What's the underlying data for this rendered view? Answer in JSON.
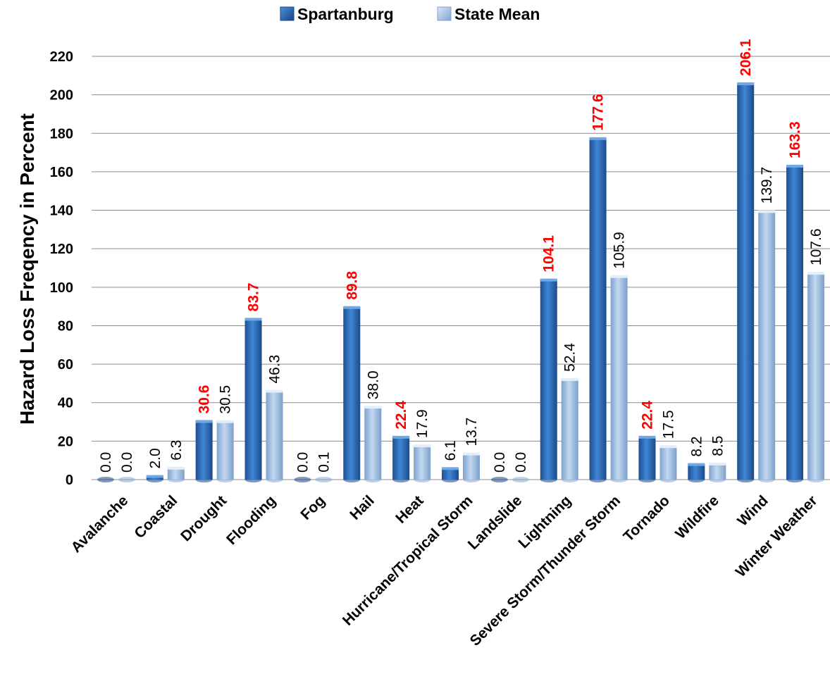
{
  "chart_data": {
    "type": "bar",
    "ylabel": "Hazard Loss Freqency in Percent",
    "ylim": [
      0,
      220
    ],
    "yticks": [
      0,
      20,
      40,
      60,
      80,
      100,
      120,
      140,
      160,
      180,
      200,
      220
    ],
    "grid": "horizontal",
    "legend_position": "top-center",
    "categories": [
      "Avalanche",
      "Coastal",
      "Drought",
      "Flooding",
      "Fog",
      "Hail",
      "Heat",
      "Hurricane/Tropical Storm",
      "Landslide",
      "Lightning",
      "Severe Storm/Thunder Storm",
      "Tornado",
      "Wildfire",
      "Wind",
      "Winter Weather"
    ],
    "series": [
      {
        "name": "Spartanburg",
        "color": "#2e6fbf",
        "label_color": "#ff0000",
        "values": [
          0.0,
          2.0,
          30.6,
          83.7,
          0.0,
          89.8,
          22.4,
          6.1,
          0.0,
          104.1,
          177.6,
          22.4,
          8.2,
          206.1,
          163.3
        ],
        "labels": [
          "0.0",
          "2.0",
          "30.6",
          "83.7",
          "0.0",
          "89.8",
          "22.4",
          "6.1",
          "0.0",
          "104.1",
          "177.6",
          "22.4",
          "8.2",
          "206.1",
          "163.3"
        ],
        "label_highlight": [
          false,
          false,
          true,
          true,
          false,
          true,
          true,
          false,
          false,
          true,
          true,
          true,
          false,
          true,
          true
        ]
      },
      {
        "name": "State Mean",
        "color": "#9bbbe0",
        "label_color": "#000000",
        "values": [
          0.0,
          6.3,
          30.5,
          46.3,
          0.1,
          38.0,
          17.9,
          13.7,
          0.0,
          52.4,
          105.9,
          17.5,
          8.5,
          139.7,
          107.6
        ],
        "labels": [
          "0.0",
          "6.3",
          "30.5",
          "46.3",
          "0.1",
          "38.0",
          "17.9",
          "13.7",
          "0.0",
          "52.4",
          "105.9",
          "17.5",
          "8.5",
          "139.7",
          "107.6"
        ]
      }
    ]
  }
}
